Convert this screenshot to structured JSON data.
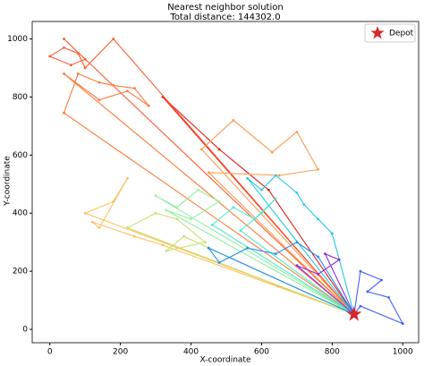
{
  "chart_data": {
    "type": "route",
    "title": "Nearest neighbor solution",
    "subtitle": "Total distance: 144302.0",
    "xlabel": "X-coordinate",
    "ylabel": "Y-coordinate",
    "xlim": [
      -50,
      1045
    ],
    "ylim": [
      -46,
      1060
    ],
    "xticks": [
      0,
      200,
      400,
      600,
      800,
      1000
    ],
    "yticks": [
      0,
      200,
      400,
      600,
      800,
      1000
    ],
    "legend": "upper right",
    "depot": {
      "name": "Depot",
      "x": 862,
      "y": 52,
      "color": "#d62728"
    },
    "routes": [
      {
        "color": "#e8201a",
        "x": [
          862,
          320,
          480,
          620,
          862
        ],
        "y": [
          52,
          800,
          620,
          480,
          52
        ]
      },
      {
        "color": "#ff5a2c",
        "x": [
          862,
          40,
          100,
          60,
          0,
          40,
          80,
          100,
          180,
          862
        ],
        "y": [
          52,
          1000,
          930,
          910,
          940,
          970,
          950,
          900,
          1000,
          52
        ]
      },
      {
        "color": "#ff7a3a",
        "x": [
          862,
          40,
          80,
          140,
          180,
          240,
          280,
          220,
          140,
          40,
          862
        ],
        "y": [
          52,
          745,
          880,
          850,
          840,
          830,
          770,
          820,
          790,
          880,
          52
        ]
      },
      {
        "color": "#ff9b50",
        "x": [
          862,
          430,
          520,
          630,
          700,
          760,
          650,
          450,
          862
        ],
        "y": [
          52,
          620,
          720,
          610,
          680,
          550,
          530,
          540,
          52
        ]
      },
      {
        "color": "#ffc060",
        "x": [
          862,
          100,
          180,
          220,
          140,
          120,
          240,
          320,
          862
        ],
        "y": [
          52,
          400,
          440,
          520,
          350,
          370,
          320,
          290,
          52
        ]
      },
      {
        "color": "#c8e070",
        "x": [
          862,
          220,
          300,
          360,
          440,
          330,
          380,
          862
        ],
        "y": [
          52,
          350,
          400,
          380,
          300,
          270,
          320,
          52
        ]
      },
      {
        "color": "#90f0a0",
        "x": [
          862,
          300,
          360,
          420,
          480,
          400,
          330,
          862
        ],
        "y": [
          52,
          460,
          420,
          480,
          440,
          380,
          410,
          52
        ]
      },
      {
        "color": "#50e8d0",
        "x": [
          862,
          460,
          520,
          580,
          640,
          600,
          540,
          862
        ],
        "y": [
          52,
          360,
          420,
          380,
          450,
          400,
          340,
          52
        ]
      },
      {
        "color": "#20c8e8",
        "x": [
          862,
          560,
          600,
          640,
          700,
          720,
          760,
          800,
          862
        ],
        "y": [
          52,
          520,
          480,
          530,
          470,
          430,
          380,
          330,
          52
        ]
      },
      {
        "color": "#2090f0",
        "x": [
          862,
          450,
          480,
          560,
          640,
          700,
          760,
          862
        ],
        "y": [
          52,
          280,
          230,
          280,
          260,
          300,
          250,
          52
        ]
      },
      {
        "color": "#4060ff",
        "x": [
          862,
          880,
          940,
          900,
          960,
          1000,
          880,
          862
        ],
        "y": [
          52,
          200,
          170,
          130,
          110,
          20,
          80,
          52
        ]
      },
      {
        "color": "#8a2be2",
        "x": [
          862,
          700,
          760,
          820,
          780,
          862
        ],
        "y": [
          52,
          220,
          190,
          240,
          260,
          52
        ]
      }
    ]
  }
}
